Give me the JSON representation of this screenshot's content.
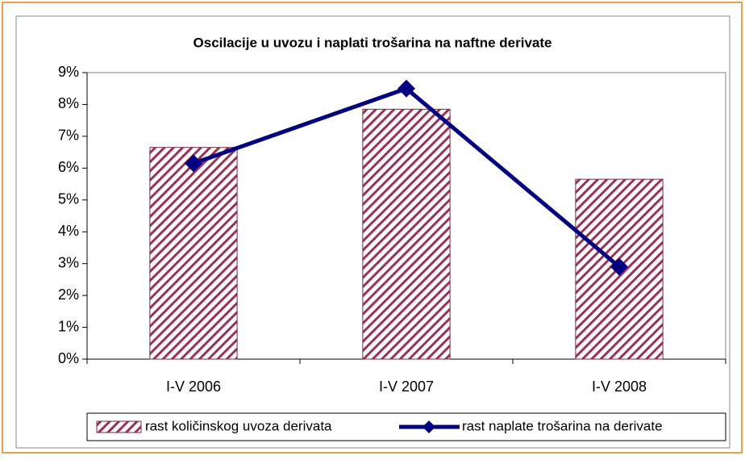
{
  "chart_data": {
    "type": "bar-line",
    "title": "Oscilacije u uvozu i naplati trošarina na naftne derivate",
    "categories": [
      "I-V 2006",
      "I-V 2007",
      "I-V 2008"
    ],
    "series": [
      {
        "name": "rast količinskog uvoza derivata",
        "type": "bar",
        "color": "#993355",
        "values": [
          6.65,
          7.85,
          5.65
        ]
      },
      {
        "name": "rast naplate trošarina na derivate",
        "type": "line",
        "color": "#000080",
        "values": [
          6.15,
          8.5,
          2.9
        ]
      }
    ],
    "ylim": [
      0,
      9
    ],
    "yticks": [
      {
        "value": 0,
        "label": "0%"
      },
      {
        "value": 1,
        "label": "1%"
      },
      {
        "value": 2,
        "label": "2%"
      },
      {
        "value": 3,
        "label": "3%"
      },
      {
        "value": 4,
        "label": "4%"
      },
      {
        "value": 5,
        "label": "5%"
      },
      {
        "value": 6,
        "label": "6%"
      },
      {
        "value": 7,
        "label": "7%"
      },
      {
        "value": 8,
        "label": "8%"
      },
      {
        "value": 9,
        "label": "9%"
      }
    ],
    "legend": "bottom"
  }
}
